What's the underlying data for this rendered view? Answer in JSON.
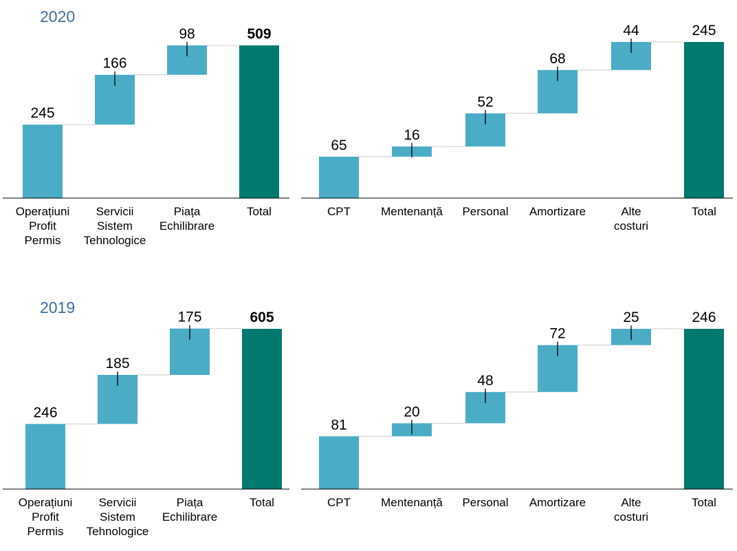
{
  "colors": {
    "increment": "#4bacc6",
    "total": "#00796e",
    "year_label": "#3d6ea0"
  },
  "panels": [
    {
      "year": "2020",
      "chart_data": [
        {
          "type": "bar",
          "subtype": "waterfall",
          "categories": [
            [
              "Operațiuni",
              "Profit",
              "Permis"
            ],
            [
              "Servicii",
              "Sistem",
              "Tehnologice"
            ],
            [
              "Piața",
              "Echilibrare"
            ],
            [
              "Total"
            ]
          ],
          "values": [
            245,
            166,
            98,
            509
          ],
          "labels": [
            "245",
            "166",
            "98",
            "509"
          ],
          "bold_total_label": true,
          "ylim": [
            0,
            509
          ]
        },
        {
          "type": "bar",
          "subtype": "waterfall",
          "categories": [
            [
              "CPT"
            ],
            [
              "Mentenanță"
            ],
            [
              "Personal"
            ],
            [
              "Amortizare"
            ],
            [
              "Alte",
              "costuri"
            ],
            [
              "Total"
            ]
          ],
          "values": [
            65,
            16,
            52,
            68,
            44,
            245
          ],
          "labels": [
            "65",
            "16",
            "52",
            "68",
            "44",
            "245"
          ],
          "bold_total_label": false,
          "ylim": [
            0,
            245
          ]
        }
      ]
    },
    {
      "year": "2019",
      "chart_data": [
        {
          "type": "bar",
          "subtype": "waterfall",
          "categories": [
            [
              "Operațiuni",
              "Profit",
              "Permis"
            ],
            [
              "Servicii",
              "Sistem",
              "Tehnologice"
            ],
            [
              "Piața",
              "Echilibrare"
            ],
            [
              "Total"
            ]
          ],
          "values": [
            246,
            185,
            175,
            605
          ],
          "labels": [
            "246",
            "185",
            "175",
            "605"
          ],
          "bold_total_label": true,
          "ylim": [
            0,
            605
          ]
        },
        {
          "type": "bar",
          "subtype": "waterfall",
          "categories": [
            [
              "CPT"
            ],
            [
              "Mentenanță"
            ],
            [
              "Personal"
            ],
            [
              "Amortizare"
            ],
            [
              "Alte",
              "costuri"
            ],
            [
              "Total"
            ]
          ],
          "values": [
            81,
            20,
            48,
            72,
            25,
            246
          ],
          "labels": [
            "81",
            "20",
            "48",
            "72",
            "25",
            "246"
          ],
          "bold_total_label": false,
          "ylim": [
            0,
            246
          ]
        }
      ]
    }
  ]
}
